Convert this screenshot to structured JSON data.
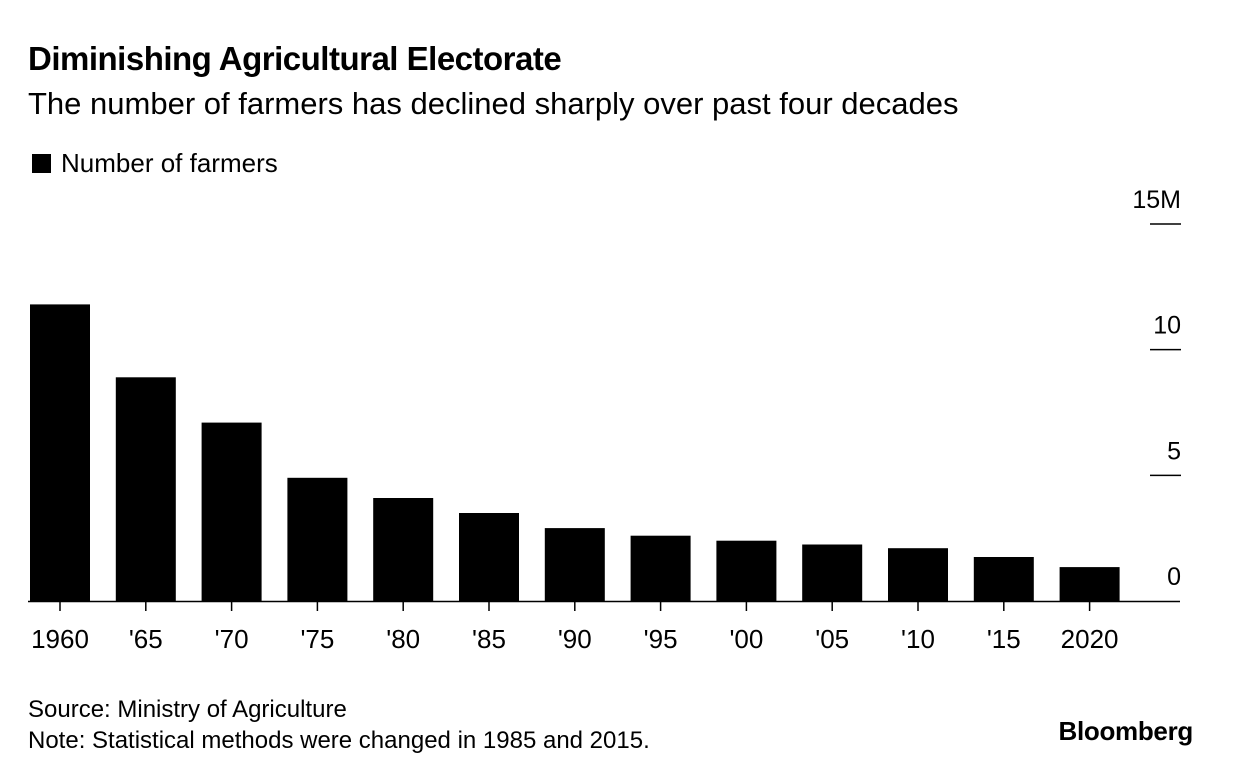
{
  "header": {
    "title": "Diminishing Agricultural Electorate",
    "subtitle": "The number of farmers has declined sharply over past four decades"
  },
  "legend": {
    "label": "Number of farmers",
    "color": "#000000"
  },
  "footer": {
    "source": "Source: Ministry of Agriculture",
    "note": "Note: Statistical methods were changed in 1985 and 2015.",
    "brand": "Bloomberg"
  },
  "chart_data": {
    "type": "bar",
    "title": "Diminishing Agricultural Electorate",
    "subtitle": "The number of farmers has declined sharply over past four decades",
    "xlabel": "",
    "ylabel": "",
    "categories": [
      "1960",
      "'65",
      "'70",
      "'75",
      "'80",
      "'85",
      "'90",
      "'95",
      "'00",
      "'05",
      "'10",
      "'15",
      "2020"
    ],
    "series": [
      {
        "name": "Number of farmers",
        "color": "#000000",
        "values": [
          11.8,
          8.9,
          7.1,
          4.9,
          4.1,
          3.5,
          2.9,
          2.6,
          2.4,
          2.25,
          2.1,
          1.75,
          1.35
        ]
      }
    ],
    "ylim": [
      0,
      15
    ],
    "yticks": [
      {
        "value": 15,
        "label": "15M"
      },
      {
        "value": 10,
        "label": "10"
      },
      {
        "value": 5,
        "label": "5"
      },
      {
        "value": 0,
        "label": "0"
      }
    ],
    "y_axis_side": "right",
    "grid": false,
    "legend_position": "top-left"
  }
}
